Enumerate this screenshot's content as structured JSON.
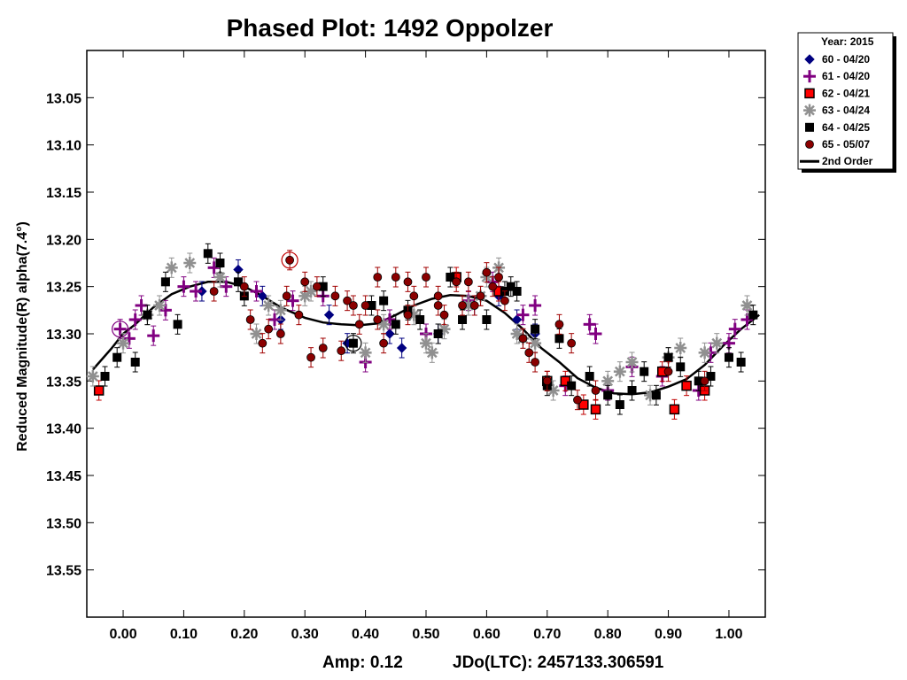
{
  "chart_data": {
    "type": "scatter",
    "title": "Phased Plot: 1492 Oppolzer",
    "xlabel": "",
    "ylabel": "Reduced Magnitude(R) alpha(7.4°)",
    "xlim": [
      -0.06,
      1.06
    ],
    "ylim": [
      13.0,
      13.6
    ],
    "y_inverted": true,
    "x_ticks": [
      "0.00",
      "0.10",
      "0.20",
      "0.30",
      "0.40",
      "0.50",
      "0.60",
      "0.70",
      "0.80",
      "0.90",
      "1.00"
    ],
    "y_ticks": [
      "13.05",
      "13.10",
      "13.15",
      "13.20",
      "13.25",
      "13.30",
      "13.35",
      "13.40",
      "13.45",
      "13.50",
      "13.55"
    ],
    "grid": false,
    "legend_position": "outside-top-right",
    "footer": {
      "amp": "Amp: 0.12",
      "epoch": "JDo(LTC): 2457133.306591"
    },
    "legend": {
      "header": "Year: 2015",
      "entries": [
        {
          "label": "60 - 04/20",
          "marker": "diamond",
          "color": "#000080"
        },
        {
          "label": "61 - 04/20",
          "marker": "plus",
          "color": "#800080"
        },
        {
          "label": "62 - 04/21",
          "marker": "square-red",
          "color": "#ff0000"
        },
        {
          "label": "63 - 04/24",
          "marker": "asterisk",
          "color": "#909090"
        },
        {
          "label": "64 - 04/25",
          "marker": "square",
          "color": "#000000"
        },
        {
          "label": "65 - 05/07",
          "marker": "circle",
          "color": "#8b0000"
        },
        {
          "label": "2nd Order",
          "marker": "line",
          "color": "#000000"
        }
      ]
    },
    "series": [
      {
        "name": "60 - 04/20",
        "marker": "diamond",
        "color": "#000080",
        "points": [
          [
            0.13,
            13.255
          ],
          [
            0.19,
            13.232
          ],
          [
            0.23,
            13.26
          ],
          [
            0.26,
            13.285
          ],
          [
            0.34,
            13.28
          ],
          [
            0.37,
            13.31
          ],
          [
            0.44,
            13.3
          ],
          [
            0.46,
            13.315
          ],
          [
            0.52,
            13.3
          ],
          [
            0.58,
            13.27
          ],
          [
            0.62,
            13.26
          ],
          [
            0.65,
            13.285
          ],
          [
            0.68,
            13.3
          ]
        ]
      },
      {
        "name": "61 - 04/20",
        "marker": "plus",
        "color": "#800080",
        "points": [
          [
            -0.005,
            13.295
          ],
          [
            0.01,
            13.305
          ],
          [
            0.02,
            13.285
          ],
          [
            0.03,
            13.27
          ],
          [
            0.05,
            13.302
          ],
          [
            0.07,
            13.275
          ],
          [
            0.1,
            13.25
          ],
          [
            0.12,
            13.255
          ],
          [
            0.15,
            13.23
          ],
          [
            0.17,
            13.25
          ],
          [
            0.22,
            13.255
          ],
          [
            0.25,
            13.285
          ],
          [
            0.28,
            13.265
          ],
          [
            0.33,
            13.26
          ],
          [
            0.4,
            13.33
          ],
          [
            0.44,
            13.285
          ],
          [
            0.5,
            13.3
          ],
          [
            0.57,
            13.265
          ],
          [
            0.61,
            13.245
          ],
          [
            0.66,
            13.28
          ],
          [
            0.68,
            13.27
          ],
          [
            0.73,
            13.355
          ],
          [
            0.77,
            13.29
          ],
          [
            0.78,
            13.3
          ],
          [
            0.8,
            13.36
          ],
          [
            0.84,
            13.335
          ],
          [
            0.89,
            13.345
          ],
          [
            0.95,
            13.36
          ],
          [
            0.97,
            13.32
          ],
          [
            1.0,
            13.31
          ],
          [
            1.01,
            13.295
          ],
          [
            1.03,
            13.285
          ]
        ]
      },
      {
        "name": "62 - 04/21",
        "marker": "square-red",
        "color": "#ff0000",
        "points": [
          [
            -0.04,
            13.36
          ],
          [
            0.55,
            13.24
          ],
          [
            0.62,
            13.255
          ],
          [
            0.7,
            13.35
          ],
          [
            0.73,
            13.35
          ],
          [
            0.76,
            13.375
          ],
          [
            0.78,
            13.38
          ],
          [
            0.89,
            13.34
          ],
          [
            0.91,
            13.38
          ],
          [
            0.93,
            13.355
          ],
          [
            0.96,
            13.36
          ]
        ]
      },
      {
        "name": "63 - 04/24",
        "marker": "asterisk",
        "color": "#909090",
        "points": [
          [
            -0.05,
            13.345
          ],
          [
            0.0,
            13.31
          ],
          [
            0.04,
            13.28
          ],
          [
            0.06,
            13.27
          ],
          [
            0.08,
            13.23
          ],
          [
            0.11,
            13.225
          ],
          [
            0.16,
            13.24
          ],
          [
            0.22,
            13.3
          ],
          [
            0.24,
            13.27
          ],
          [
            0.26,
            13.275
          ],
          [
            0.3,
            13.26
          ],
          [
            0.31,
            13.255
          ],
          [
            0.4,
            13.32
          ],
          [
            0.43,
            13.29
          ],
          [
            0.48,
            13.28
          ],
          [
            0.5,
            13.31
          ],
          [
            0.51,
            13.32
          ],
          [
            0.53,
            13.295
          ],
          [
            0.57,
            13.27
          ],
          [
            0.59,
            13.26
          ],
          [
            0.6,
            13.24
          ],
          [
            0.62,
            13.23
          ],
          [
            0.65,
            13.3
          ],
          [
            0.66,
            13.305
          ],
          [
            0.68,
            13.31
          ],
          [
            0.71,
            13.36
          ],
          [
            0.8,
            13.35
          ],
          [
            0.82,
            13.34
          ],
          [
            0.84,
            13.33
          ],
          [
            0.87,
            13.365
          ],
          [
            0.9,
            13.325
          ],
          [
            0.92,
            13.315
          ],
          [
            0.96,
            13.32
          ],
          [
            0.98,
            13.31
          ],
          [
            1.03,
            13.27
          ]
        ]
      },
      {
        "name": "64 - 04/25",
        "marker": "square",
        "color": "#000000",
        "points": [
          [
            -0.03,
            13.345
          ],
          [
            -0.01,
            13.325
          ],
          [
            0.02,
            13.33
          ],
          [
            0.04,
            13.28
          ],
          [
            0.07,
            13.245
          ],
          [
            0.09,
            13.29
          ],
          [
            0.14,
            13.215
          ],
          [
            0.16,
            13.225
          ],
          [
            0.19,
            13.245
          ],
          [
            0.2,
            13.26
          ],
          [
            0.33,
            13.25
          ],
          [
            0.38,
            13.31
          ],
          [
            0.41,
            13.27
          ],
          [
            0.43,
            13.265
          ],
          [
            0.45,
            13.29
          ],
          [
            0.47,
            13.275
          ],
          [
            0.49,
            13.285
          ],
          [
            0.52,
            13.3
          ],
          [
            0.54,
            13.24
          ],
          [
            0.56,
            13.285
          ],
          [
            0.6,
            13.285
          ],
          [
            0.63,
            13.255
          ],
          [
            0.64,
            13.25
          ],
          [
            0.65,
            13.255
          ],
          [
            0.68,
            13.295
          ],
          [
            0.7,
            13.355
          ],
          [
            0.72,
            13.305
          ],
          [
            0.74,
            13.355
          ],
          [
            0.77,
            13.345
          ],
          [
            0.8,
            13.365
          ],
          [
            0.82,
            13.375
          ],
          [
            0.84,
            13.36
          ],
          [
            0.86,
            13.34
          ],
          [
            0.88,
            13.365
          ],
          [
            0.9,
            13.325
          ],
          [
            0.92,
            13.335
          ],
          [
            0.95,
            13.35
          ],
          [
            0.97,
            13.345
          ],
          [
            1.0,
            13.325
          ],
          [
            1.02,
            13.33
          ],
          [
            1.04,
            13.28
          ]
        ]
      },
      {
        "name": "65 - 05/07",
        "marker": "circle",
        "color": "#8b0000",
        "points": [
          [
            0.15,
            13.255
          ],
          [
            0.2,
            13.25
          ],
          [
            0.21,
            13.285
          ],
          [
            0.23,
            13.31
          ],
          [
            0.24,
            13.295
          ],
          [
            0.26,
            13.3
          ],
          [
            0.27,
            13.26
          ],
          [
            0.275,
            13.222
          ],
          [
            0.29,
            13.28
          ],
          [
            0.3,
            13.245
          ],
          [
            0.31,
            13.325
          ],
          [
            0.32,
            13.25
          ],
          [
            0.33,
            13.315
          ],
          [
            0.35,
            13.26
          ],
          [
            0.36,
            13.318
          ],
          [
            0.37,
            13.265
          ],
          [
            0.38,
            13.27
          ],
          [
            0.39,
            13.29
          ],
          [
            0.4,
            13.27
          ],
          [
            0.42,
            13.285
          ],
          [
            0.42,
            13.24
          ],
          [
            0.43,
            13.31
          ],
          [
            0.45,
            13.24
          ],
          [
            0.47,
            13.245
          ],
          [
            0.47,
            13.28
          ],
          [
            0.48,
            13.26
          ],
          [
            0.5,
            13.24
          ],
          [
            0.52,
            13.26
          ],
          [
            0.52,
            13.27
          ],
          [
            0.53,
            13.28
          ],
          [
            0.55,
            13.245
          ],
          [
            0.56,
            13.27
          ],
          [
            0.57,
            13.245
          ],
          [
            0.58,
            13.27
          ],
          [
            0.59,
            13.26
          ],
          [
            0.6,
            13.235
          ],
          [
            0.61,
            13.25
          ],
          [
            0.62,
            13.24
          ],
          [
            0.63,
            13.265
          ],
          [
            0.66,
            13.305
          ],
          [
            0.67,
            13.32
          ],
          [
            0.68,
            13.33
          ],
          [
            0.7,
            13.35
          ],
          [
            0.72,
            13.29
          ],
          [
            0.74,
            13.31
          ],
          [
            0.75,
            13.37
          ],
          [
            0.78,
            13.36
          ],
          [
            0.9,
            13.34
          ],
          [
            0.96,
            13.35
          ]
        ]
      }
    ],
    "fit_curve": {
      "name": "2nd Order",
      "points": [
        [
          -0.05,
          13.338
        ],
        [
          -0.02,
          13.316
        ],
        [
          0.0,
          13.3
        ],
        [
          0.02,
          13.29
        ],
        [
          0.05,
          13.272
        ],
        [
          0.08,
          13.258
        ],
        [
          0.11,
          13.25
        ],
        [
          0.14,
          13.245
        ],
        [
          0.17,
          13.245
        ],
        [
          0.2,
          13.25
        ],
        [
          0.23,
          13.26
        ],
        [
          0.26,
          13.272
        ],
        [
          0.3,
          13.283
        ],
        [
          0.33,
          13.288
        ],
        [
          0.36,
          13.29
        ],
        [
          0.39,
          13.291
        ],
        [
          0.42,
          13.289
        ],
        [
          0.45,
          13.28
        ],
        [
          0.48,
          13.27
        ],
        [
          0.51,
          13.263
        ],
        [
          0.54,
          13.259
        ],
        [
          0.57,
          13.26
        ],
        [
          0.6,
          13.265
        ],
        [
          0.63,
          13.278
        ],
        [
          0.66,
          13.295
        ],
        [
          0.69,
          13.315
        ],
        [
          0.72,
          13.33
        ],
        [
          0.75,
          13.347
        ],
        [
          0.78,
          13.357
        ],
        [
          0.81,
          13.363
        ],
        [
          0.84,
          13.364
        ],
        [
          0.87,
          13.362
        ],
        [
          0.9,
          13.356
        ],
        [
          0.93,
          13.348
        ],
        [
          0.96,
          13.333
        ],
        [
          0.99,
          13.313
        ],
        [
          1.02,
          13.295
        ],
        [
          1.05,
          13.28
        ]
      ]
    },
    "circled_points": [
      [
        -0.005,
        13.295
      ],
      [
        0.275,
        13.222
      ],
      [
        0.38,
        13.31
      ]
    ]
  }
}
